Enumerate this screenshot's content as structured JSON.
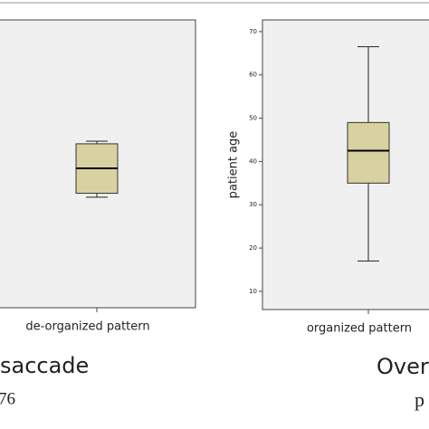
{
  "chart_data": [
    {
      "type": "box",
      "categories": [
        "de-organized pattern"
      ],
      "boxes": [
        {
          "whisker_low": 31.5,
          "q1": 32.4,
          "median": 38.2,
          "q3": 43.9,
          "whisker_high": 44.5
        }
      ],
      "color": "#d8d2a0",
      "ylim": [
        5.8,
        72.7
      ]
    },
    {
      "type": "box",
      "categories": [
        "organized pattern"
      ],
      "ylabel": "patient age",
      "boxes": [
        {
          "whisker_low": 17,
          "q1": 35,
          "median": 42.5,
          "q3": 49,
          "whisker_high": 66.5
        }
      ],
      "color": "#d8d2a0",
      "ylim": [
        5.8,
        72.7
      ],
      "yticks": [
        10,
        20,
        30,
        40,
        50,
        60,
        70
      ]
    }
  ],
  "captions": [
    "saccade",
    "76",
    "Over",
    "p"
  ]
}
